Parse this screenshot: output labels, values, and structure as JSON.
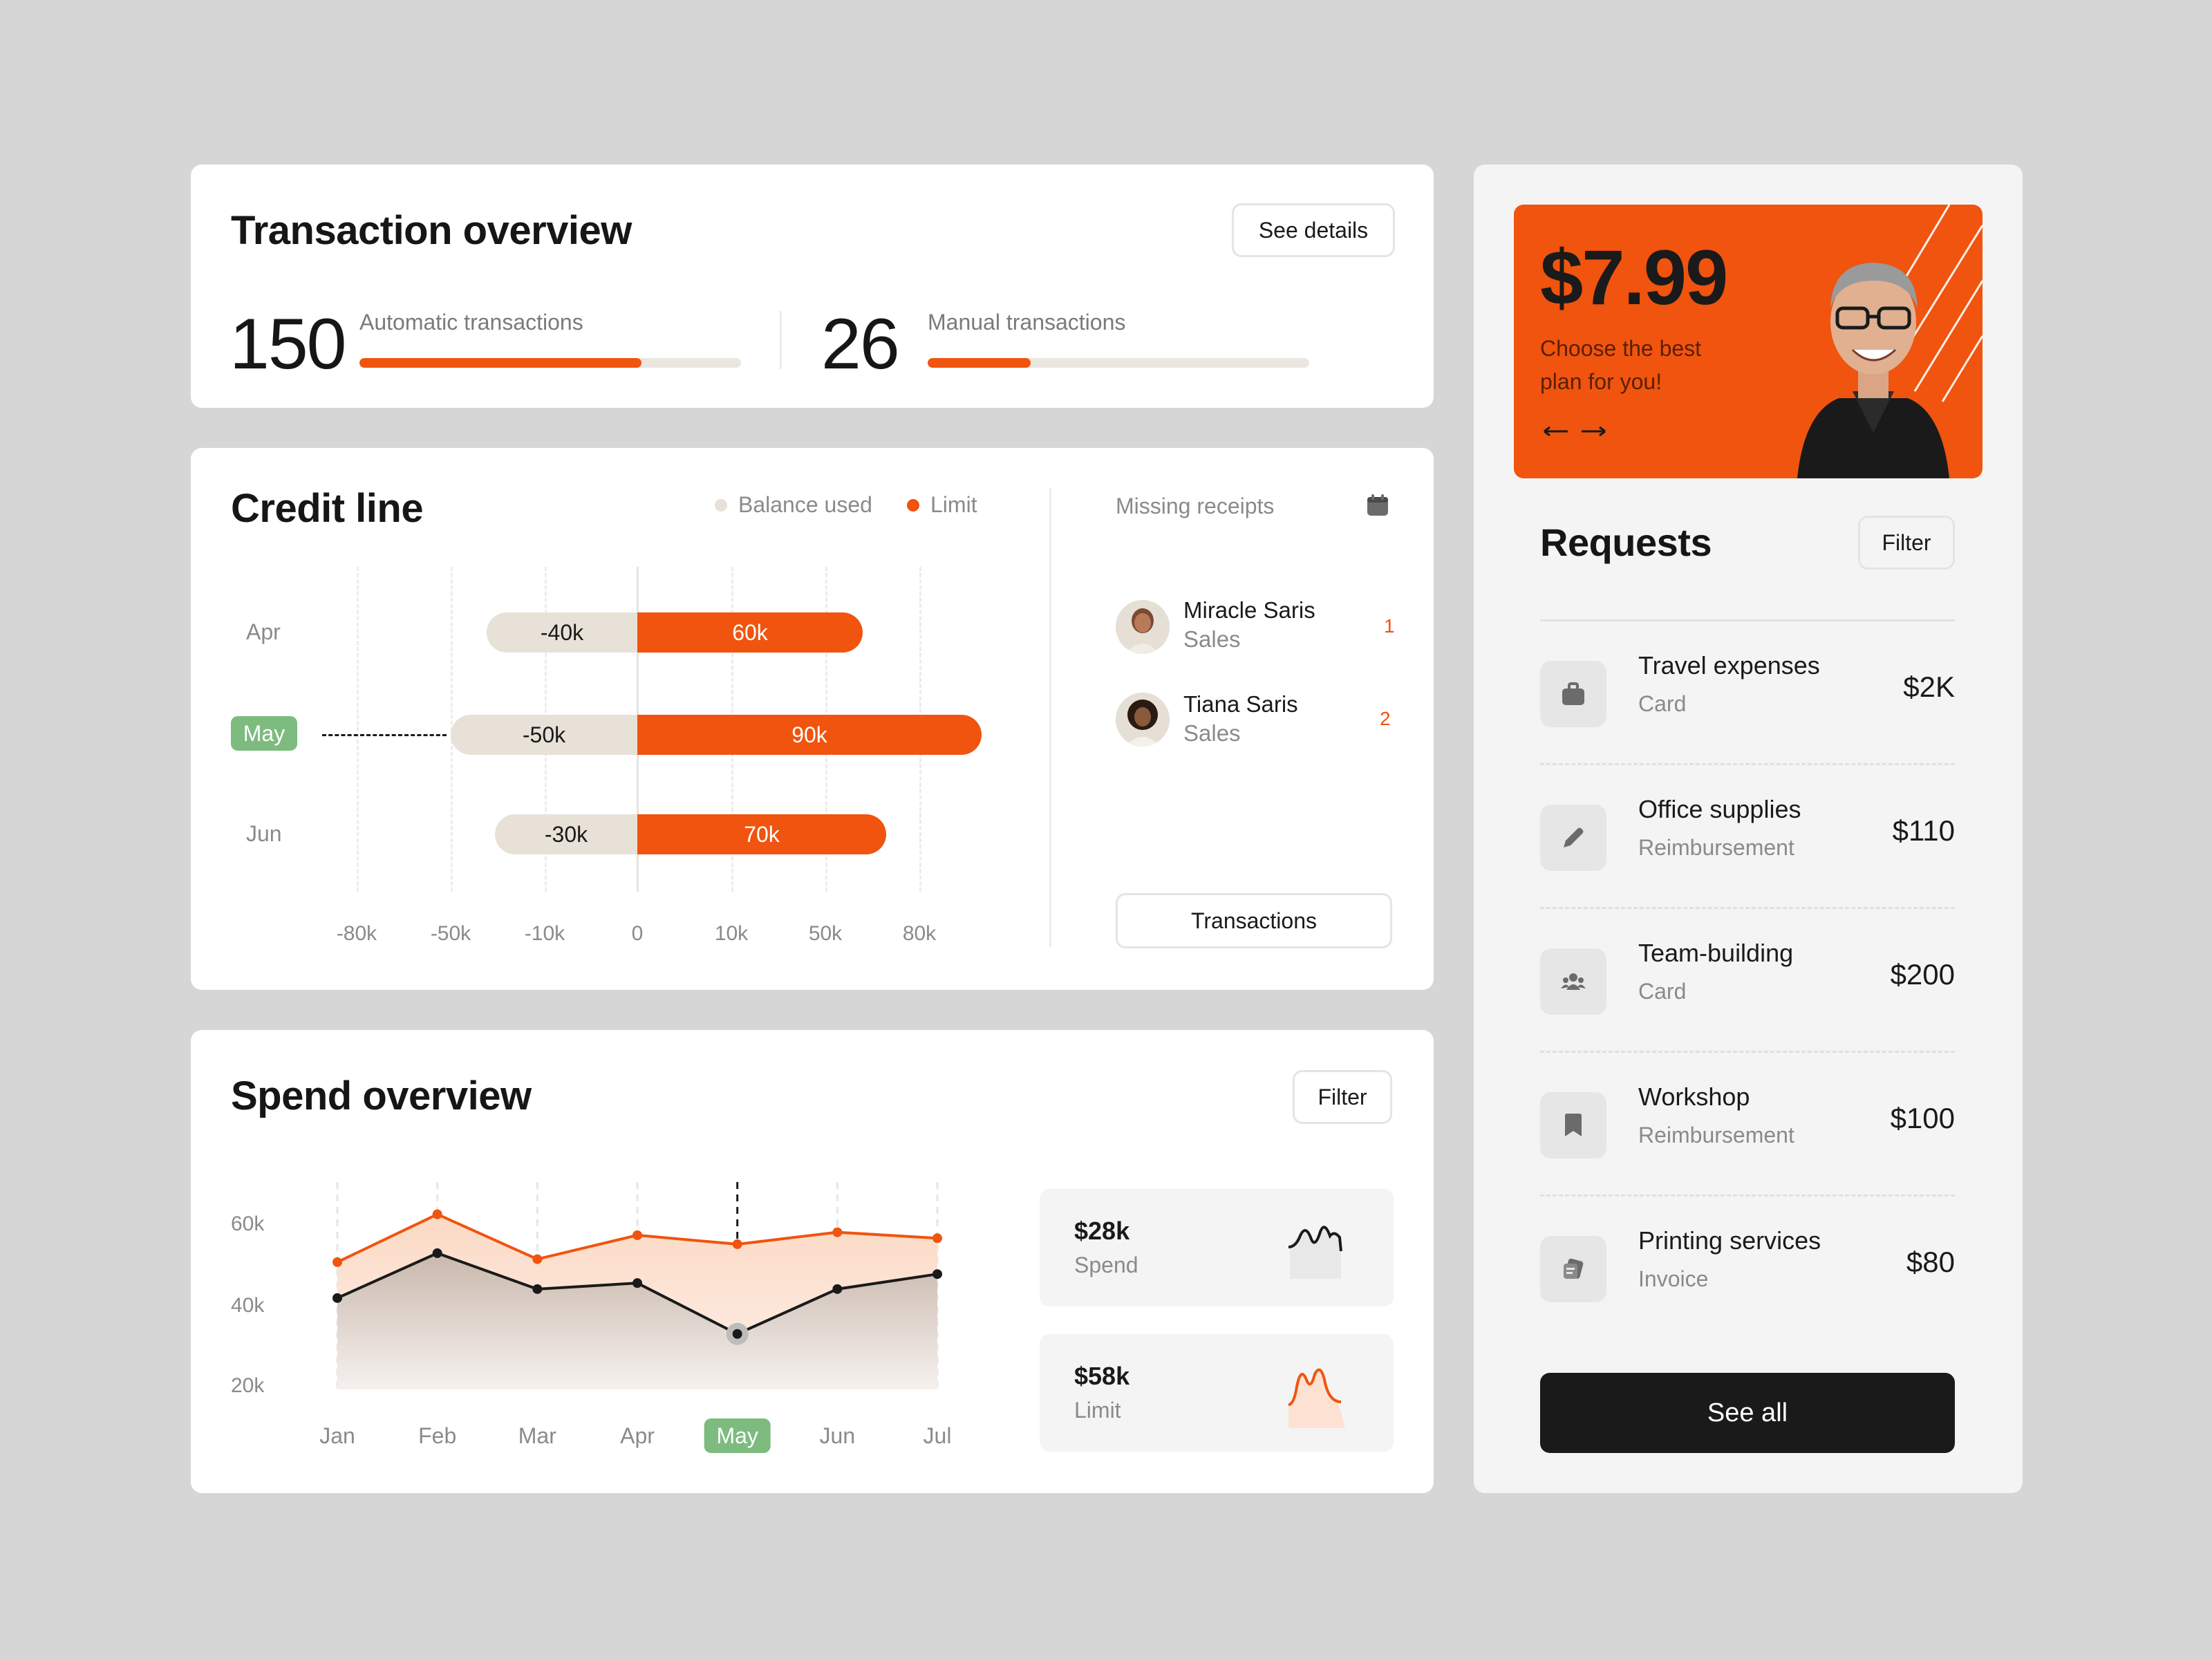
{
  "transaction_overview": {
    "title": "Transaction overview",
    "see_details": "See details",
    "automatic": {
      "count": "150",
      "label": "Automatic transactions",
      "progress": 0.74
    },
    "manual": {
      "count": "26",
      "label": "Manual transactions",
      "progress": 0.27
    }
  },
  "credit_line": {
    "title": "Credit line",
    "legend": {
      "balance": "Balance used",
      "limit": "Limit"
    },
    "colors": {
      "balance": "#e7e1d7",
      "limit": "#f0540f",
      "highlight": "#7dbb7f"
    },
    "x_ticks": [
      "-80k",
      "-50k",
      "-10k",
      "0",
      "10k",
      "50k",
      "80k"
    ],
    "rows": [
      {
        "month": "Apr",
        "balance_label": "-40k",
        "limit_label": "60k",
        "highlighted": false
      },
      {
        "month": "May",
        "balance_label": "-50k",
        "limit_label": "90k",
        "highlighted": true
      },
      {
        "month": "Jun",
        "balance_label": "-30k",
        "limit_label": "70k",
        "highlighted": false
      }
    ]
  },
  "missing_receipts": {
    "title": "Missing receipts",
    "people": [
      {
        "name": "Miracle Saris",
        "role": "Sales",
        "count": "1"
      },
      {
        "name": "Tiana Saris",
        "role": "Sales",
        "count": "2"
      }
    ],
    "button": "Transactions"
  },
  "spend_overview": {
    "title": "Spend overview",
    "filter": "Filter",
    "y_ticks": [
      "60k",
      "40k",
      "20k"
    ],
    "spend_card": {
      "value": "$28k",
      "label": "Spend"
    },
    "limit_card": {
      "value": "$58k",
      "label": "Limit"
    }
  },
  "chart_data": {
    "type": "area",
    "categories": [
      "Jan",
      "Feb",
      "Mar",
      "Apr",
      "May",
      "Jun",
      "Jul"
    ],
    "highlight": "May",
    "series": [
      {
        "name": "Limit",
        "color": "#f0540f",
        "values": [
          52,
          68,
          53,
          61,
          58,
          62,
          60
        ]
      },
      {
        "name": "Spend",
        "color": "#1a1a1a",
        "values": [
          40,
          55,
          43,
          45,
          28,
          43,
          48
        ]
      }
    ],
    "ylim": [
      15,
      70
    ]
  },
  "promo": {
    "price": "$7.99",
    "text": "Choose the best plan for you!"
  },
  "requests": {
    "title": "Requests",
    "filter": "Filter",
    "items": [
      {
        "title": "Travel expenses",
        "subtitle": "Card",
        "amount": "$2K",
        "icon": "briefcase-icon"
      },
      {
        "title": "Office supplies",
        "subtitle": "Reimbursement",
        "amount": "$110",
        "icon": "pencil-icon"
      },
      {
        "title": "Team-building",
        "subtitle": "Card",
        "amount": "$200",
        "icon": "team-icon"
      },
      {
        "title": "Workshop",
        "subtitle": "Reimbursement",
        "amount": "$100",
        "icon": "bookmark-icon"
      },
      {
        "title": "Printing services",
        "subtitle": "Invoice",
        "amount": "$80",
        "icon": "printer-icon"
      }
    ],
    "see_all": "See all"
  }
}
